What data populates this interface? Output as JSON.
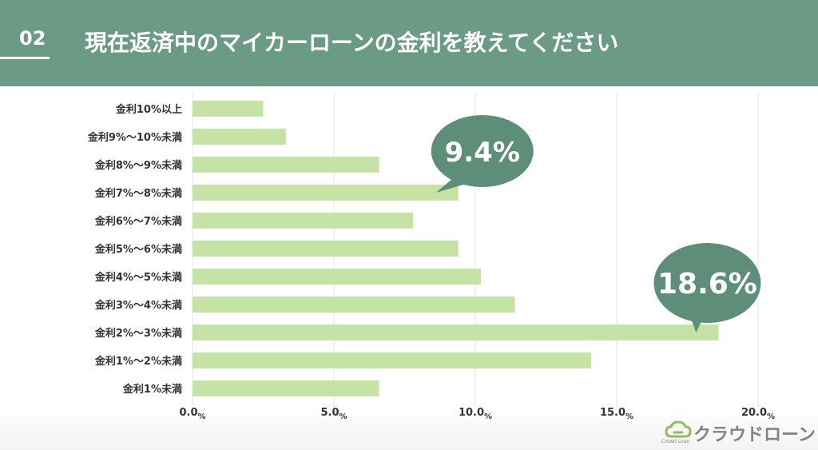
{
  "header": {
    "number": "02",
    "title": "現在返済中のマイカーローンの金利を教えてください"
  },
  "chart_data": {
    "type": "bar",
    "orientation": "horizontal",
    "categories": [
      "金利10%以上",
      "金利9%～10%未満",
      "金利8%～9%未満",
      "金利7%～8%未満",
      "金利6%～7%未満",
      "金利5%～6%未満",
      "金利4%～5%未満",
      "金利3%～4%未満",
      "金利2%～3%未満",
      "金利1%～2%未満",
      "金利1%未満"
    ],
    "values": [
      2.5,
      3.3,
      6.6,
      9.4,
      7.8,
      9.4,
      10.2,
      11.4,
      18.6,
      14.1,
      6.6
    ],
    "xlim": [
      0,
      20
    ],
    "x_ticks": [
      "0.0",
      "5.0",
      "10.0",
      "15.0",
      "20.0"
    ],
    "x_unit": "%",
    "grid": true,
    "bar_color": "#c5e3a4",
    "callouts": [
      {
        "category_index": 3,
        "text": "9.4%"
      },
      {
        "category_index": 8,
        "text": "18.6%"
      }
    ],
    "callout_color": "#5e8e7a"
  },
  "logo": {
    "name": "クラウドローン",
    "sub": "Crowd Loan"
  },
  "colors": {
    "header": "#6b9a86",
    "bar": "#c5e3a4",
    "bubble": "#5e8e7a",
    "grid": "#e4e4e4"
  }
}
